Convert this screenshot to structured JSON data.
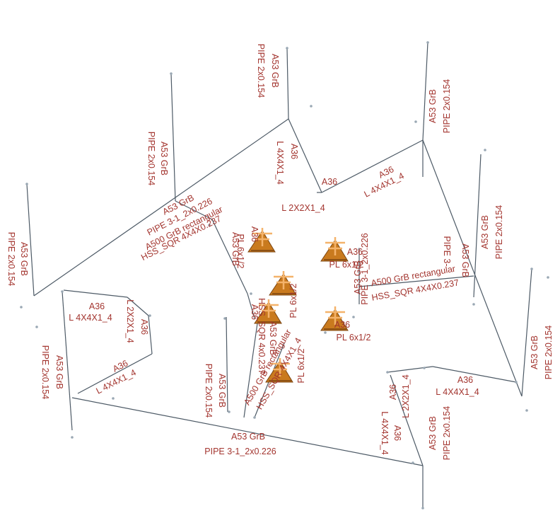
{
  "colors": {
    "member_line": "#4d5a66",
    "label": "#a3352f",
    "node": "#9aa8b4",
    "plate_fill": "#c97a1e",
    "plate_dark": "#7a4410",
    "plate_light": "#f4b36b"
  },
  "labels": {
    "a53grb": "A53 GrB",
    "a36": "A36",
    "a500": "A500 GrB rectangular",
    "pipe2": "PIPE 2x0.154",
    "pipe3": "PIPE 3-1_2x0.226",
    "l4x4": "L 4X4X1_4",
    "l2x2": "L 2X2X1_4",
    "hss": "HSS_SQR 4X4X0.237",
    "pl6": "PL 6x1/2",
    "hss_partial": "HSS_SQR 4x0.237",
    "hss_partial2": "HSS_SQR 4X4X1_4",
    "pipe3_partial": "PIPE 3-1_2x0.226",
    "pipe_partial": "PIPE 3-"
  }
}
